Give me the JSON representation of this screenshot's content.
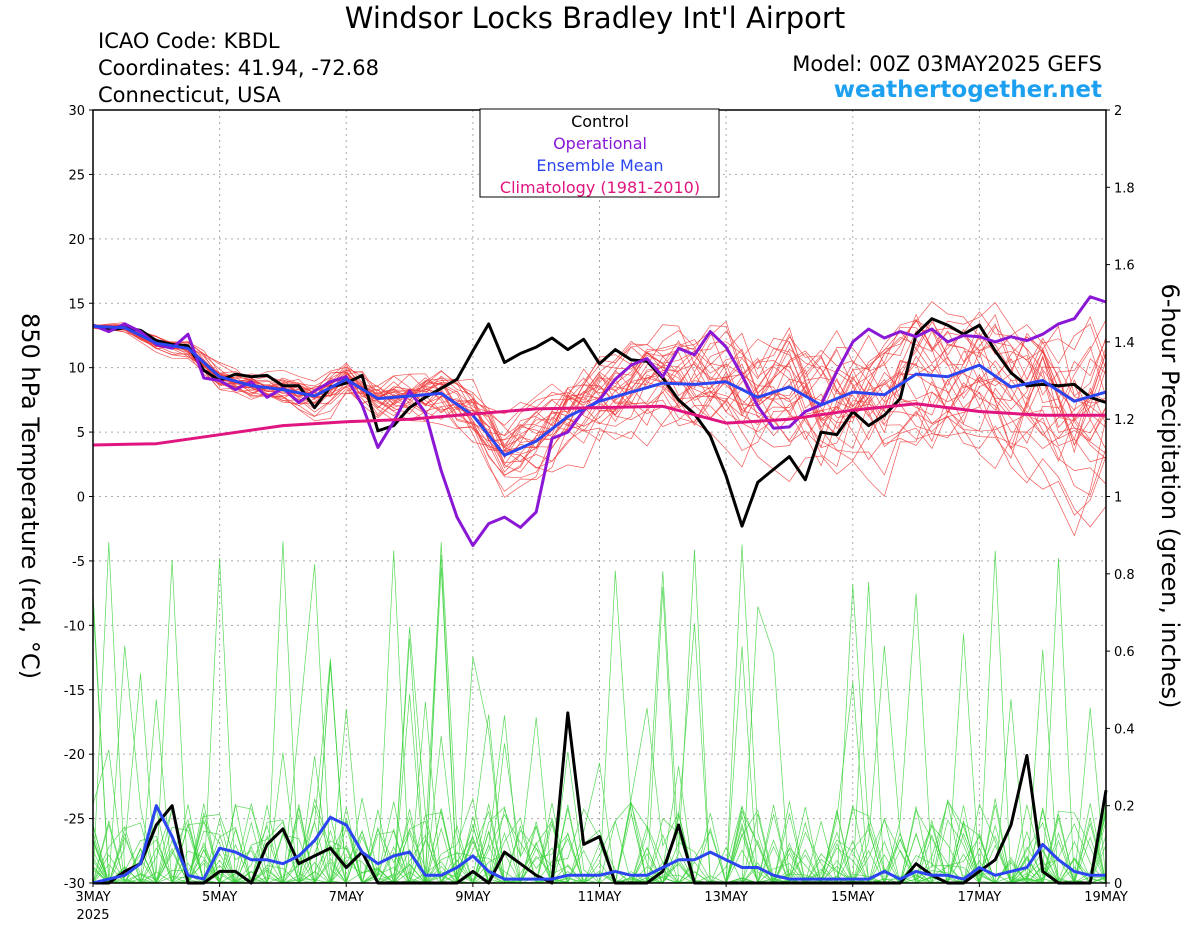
{
  "header": {
    "title": "Windsor Locks Bradley Int'l Airport",
    "icao": "ICAO Code: KBDL",
    "coordinates": "Coordinates: 41.94, -72.68",
    "region": "Connecticut, USA",
    "model": "Model: 00Z 03MAY2025 GEFS",
    "site": "weathertogether.net"
  },
  "chart_data": {
    "type": "line",
    "left_axis": {
      "label": "850 hPa Temperature (red, °C)",
      "ylim": [
        -30,
        30
      ],
      "ticks": [
        "30",
        "25",
        "20",
        "15",
        "10",
        "5",
        "0",
        "-5",
        "-10",
        "-15",
        "-20",
        "-25",
        "-30"
      ]
    },
    "right_axis": {
      "label": "6-hour Precipitation (green, inches)",
      "ylim": [
        0,
        2
      ],
      "ticks": [
        "2",
        "1.8",
        "1.6",
        "1.4",
        "1.2",
        "1",
        "0.8",
        "0.6",
        "0.4",
        "0.2",
        "0"
      ]
    },
    "x_axis": {
      "unit": "days since 3MAY 00Z",
      "xlim": [
        0,
        16
      ],
      "ticks": [
        {
          "x": 0,
          "label": "3MAY"
        },
        {
          "x": 2,
          "label": "5MAY"
        },
        {
          "x": 4,
          "label": "7MAY"
        },
        {
          "x": 6,
          "label": "9MAY"
        },
        {
          "x": 8,
          "label": "11MAY"
        },
        {
          "x": 10,
          "label": "13MAY"
        },
        {
          "x": 12,
          "label": "15MAY"
        },
        {
          "x": 14,
          "label": "17MAY"
        },
        {
          "x": 16,
          "label": "19MAY"
        }
      ],
      "year_label": "2025"
    },
    "grid": true,
    "legend": {
      "placement": "top-center",
      "entries": [
        {
          "label": "Control",
          "color": "#000000"
        },
        {
          "label": "Operational",
          "color": "#8a17d6"
        },
        {
          "label": "Ensemble Mean",
          "color": "#2b45f0"
        },
        {
          "label": "Climatology (1981-2010)",
          "color": "#e0157f"
        }
      ]
    },
    "colors": {
      "members_temp": "#f03c3c",
      "members_precip": "#3cd23c",
      "control": "#000000",
      "operational": "#8a17d6",
      "mean": "#2b45f0",
      "climatology": "#e0157f"
    },
    "series": [
      {
        "name": "Control",
        "axis": "temperature",
        "x": [
          0,
          0.25,
          0.5,
          0.75,
          1,
          1.25,
          1.5,
          1.75,
          2,
          2.25,
          2.5,
          2.75,
          3,
          3.25,
          3.5,
          3.75,
          4,
          4.25,
          4.5,
          4.75,
          5,
          5.25,
          5.5,
          5.75,
          6,
          6.25,
          6.5,
          6.75,
          7,
          7.25,
          7.5,
          7.75,
          8,
          8.25,
          8.5,
          8.75,
          9,
          9.25,
          9.5,
          9.75,
          10,
          10.25,
          10.5,
          10.75,
          11,
          11.25,
          11.5,
          11.75,
          12,
          12.25,
          12.5,
          12.75,
          13,
          13.25,
          13.5,
          13.75,
          14,
          14.25,
          14.5,
          14.75,
          15,
          15.25,
          15.5,
          15.75,
          16
        ],
        "values": [
          13.3,
          12.9,
          13.1,
          12.9,
          12.1,
          11.8,
          11.7,
          9.8,
          9.0,
          9.5,
          9.3,
          9.4,
          8.6,
          8.6,
          6.9,
          8.5,
          8.8,
          9.4,
          5.1,
          5.5,
          6.9,
          7.7,
          8.4,
          9.1,
          11.3,
          13.4,
          10.4,
          11.1,
          11.6,
          12.3,
          11.4,
          12.2,
          10.3,
          11.4,
          10.6,
          10.5,
          9.2,
          7.5,
          6.4,
          4.7,
          1.6,
          -2.3,
          1.1,
          2.1,
          3.1,
          1.3,
          5.0,
          4.8,
          6.6,
          5.5,
          6.3,
          7.6,
          12.6,
          13.8,
          13.3,
          12.6,
          13.3,
          11.3,
          9.6,
          8.6,
          8.7,
          8.6,
          8.7,
          7.7,
          7.3
        ]
      },
      {
        "name": "Operational",
        "axis": "temperature",
        "x": [
          0,
          0.25,
          0.5,
          0.75,
          1,
          1.25,
          1.5,
          1.75,
          2,
          2.25,
          2.5,
          2.75,
          3,
          3.25,
          3.5,
          3.75,
          4,
          4.25,
          4.5,
          4.75,
          5,
          5.25,
          5.5,
          5.75,
          6,
          6.25,
          6.5,
          6.75,
          7,
          7.25,
          7.5,
          7.75,
          8,
          8.25,
          8.5,
          8.75,
          9,
          9.25,
          9.5,
          9.75,
          10,
          10.25,
          10.5,
          10.75,
          11,
          11.25,
          11.5,
          11.75,
          12,
          12.25,
          12.5,
          12.75,
          13,
          13.25,
          13.5,
          13.75,
          14,
          14.25,
          14.5,
          14.75,
          15,
          15.25,
          15.5,
          15.75,
          16
        ],
        "values": [
          13.3,
          12.8,
          13.4,
          12.8,
          11.8,
          11.5,
          12.6,
          9.2,
          9.0,
          8.3,
          8.9,
          7.7,
          8.4,
          7.3,
          8.2,
          8.9,
          9.3,
          7.1,
          3.8,
          5.8,
          8.2,
          6.5,
          2.0,
          -1.6,
          -3.8,
          -2.1,
          -1.6,
          -2.4,
          -1.2,
          4.5,
          5.0,
          6.7,
          7.5,
          9.1,
          10.2,
          10.7,
          9.3,
          11.5,
          11.0,
          12.8,
          11.6,
          9.4,
          7.0,
          5.3,
          5.4,
          6.6,
          7.1,
          9.7,
          12.0,
          13.0,
          12.3,
          12.8,
          12.4,
          13.0,
          12.0,
          12.5,
          12.4,
          12.0,
          12.4,
          12.1,
          12.6,
          13.4,
          13.8,
          15.5,
          15.1
        ]
      },
      {
        "name": "Ensemble Mean",
        "axis": "temperature",
        "x": [
          0,
          0.5,
          1,
          1.5,
          2,
          2.5,
          3,
          3.5,
          4,
          4.5,
          5,
          5.5,
          6,
          6.5,
          7,
          7.5,
          8,
          8.5,
          9,
          9.5,
          10,
          10.5,
          11,
          11.5,
          12,
          12.5,
          13,
          13.5,
          14,
          14.5,
          15,
          15.5,
          16
        ],
        "values": [
          13.2,
          13.1,
          11.9,
          11.5,
          9.3,
          8.6,
          8.3,
          7.8,
          9.1,
          7.6,
          7.8,
          8.0,
          6.3,
          3.2,
          4.3,
          6.2,
          7.4,
          8.1,
          8.8,
          8.7,
          8.9,
          7.7,
          8.5,
          7.1,
          8.1,
          7.9,
          9.5,
          9.3,
          10.2,
          8.5,
          9.0,
          7.4,
          8.1
        ]
      },
      {
        "name": "Climatology (1981-2010)",
        "axis": "temperature",
        "x": [
          0,
          1,
          2,
          3,
          4,
          5,
          6,
          7,
          8,
          9,
          10,
          11,
          12,
          13,
          14,
          15,
          16
        ],
        "values": [
          4.0,
          4.1,
          4.8,
          5.5,
          5.8,
          6.0,
          6.4,
          6.8,
          6.9,
          7.0,
          5.7,
          6.0,
          6.7,
          7.2,
          6.6,
          6.3,
          6.3
        ]
      },
      {
        "name": "Control",
        "axis": "precipitation",
        "x": [
          0,
          0.25,
          0.5,
          0.75,
          1,
          1.25,
          1.5,
          1.75,
          2,
          2.25,
          2.5,
          2.75,
          3,
          3.25,
          3.5,
          3.75,
          4,
          4.25,
          4.5,
          4.75,
          5,
          5.25,
          5.5,
          5.75,
          6,
          6.25,
          6.5,
          6.75,
          7,
          7.25,
          7.5,
          7.75,
          8,
          8.25,
          8.5,
          8.75,
          9,
          9.25,
          9.5,
          9.75,
          10,
          10.25,
          10.5,
          10.75,
          11,
          11.25,
          11.5,
          11.75,
          12,
          12.25,
          12.5,
          12.75,
          13,
          13.25,
          13.5,
          13.75,
          14,
          14.25,
          14.5,
          14.75,
          15,
          15.25,
          15.5,
          15.75,
          16
        ],
        "values": [
          0,
          0,
          0.03,
          0.05,
          0.15,
          0.2,
          0,
          0,
          0.03,
          0.03,
          0,
          0.1,
          0.14,
          0.05,
          0.07,
          0.09,
          0.04,
          0.08,
          0,
          0,
          0,
          0,
          0,
          0,
          0.03,
          0,
          0.08,
          0.05,
          0.02,
          0,
          0.44,
          0.1,
          0.12,
          0,
          0,
          0,
          0.03,
          0.15,
          0,
          0,
          0,
          0,
          0,
          0,
          0,
          0,
          0,
          0,
          0,
          0,
          0,
          0,
          0.05,
          0.02,
          0,
          0,
          0.03,
          0.06,
          0.15,
          0.33,
          0.03,
          0,
          0,
          0,
          0.24
        ]
      },
      {
        "name": "Ensemble Mean",
        "axis": "precipitation",
        "x": [
          0,
          0.25,
          0.5,
          0.75,
          1,
          1.25,
          1.5,
          1.75,
          2,
          2.25,
          2.5,
          2.75,
          3,
          3.25,
          3.5,
          3.75,
          4,
          4.25,
          4.5,
          4.75,
          5,
          5.25,
          5.5,
          5.75,
          6,
          6.25,
          6.5,
          6.75,
          7,
          7.25,
          7.5,
          7.75,
          8,
          8.25,
          8.5,
          8.75,
          9,
          9.25,
          9.5,
          9.75,
          10,
          10.25,
          10.5,
          10.75,
          11,
          11.25,
          11.5,
          11.75,
          12,
          12.25,
          12.5,
          12.75,
          13,
          13.25,
          13.5,
          13.75,
          14,
          14.25,
          14.5,
          14.75,
          15,
          15.25,
          15.5,
          15.75,
          16
        ],
        "values": [
          0,
          0.01,
          0.02,
          0.05,
          0.2,
          0.12,
          0.02,
          0.01,
          0.09,
          0.08,
          0.06,
          0.06,
          0.05,
          0.07,
          0.11,
          0.17,
          0.15,
          0.08,
          0.05,
          0.07,
          0.08,
          0.02,
          0.02,
          0.04,
          0.07,
          0.03,
          0.01,
          0.01,
          0.01,
          0.01,
          0.02,
          0.02,
          0.02,
          0.03,
          0.02,
          0.02,
          0.04,
          0.06,
          0.06,
          0.08,
          0.06,
          0.04,
          0.04,
          0.02,
          0.01,
          0.01,
          0.01,
          0.01,
          0.01,
          0.01,
          0.03,
          0.01,
          0.03,
          0.02,
          0.02,
          0.01,
          0.04,
          0.02,
          0.03,
          0.04,
          0.1,
          0.06,
          0.03,
          0.02,
          0.02
        ]
      }
    ],
    "member_count": 30
  }
}
